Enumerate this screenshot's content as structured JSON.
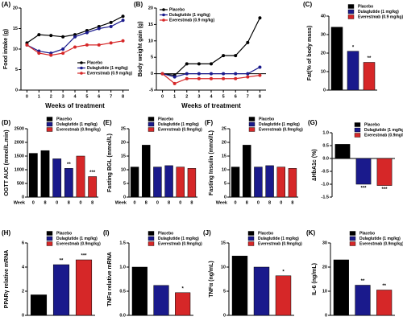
{
  "chart_data": [
    {
      "type": "line",
      "label": "(A)",
      "ylabel": "Food intake (g)",
      "xlabel": "Weeks of treatment",
      "x": [
        0,
        1,
        2,
        3,
        4,
        5,
        6,
        7,
        8
      ],
      "xlim": [
        -0.5,
        8.5
      ],
      "xticks": [
        0,
        1,
        2,
        3,
        4,
        5,
        6,
        7,
        8
      ],
      "ylim": [
        0,
        20
      ],
      "yticks": [
        0,
        5,
        10,
        15,
        20
      ],
      "legend": "lower right",
      "series": [
        {
          "name": "Placebo",
          "color": "#000000",
          "values": [
            11.5,
            13.5,
            13.3,
            13,
            13.5,
            14.5,
            15.5,
            16.5,
            18
          ]
        },
        {
          "name": "Dulaglutide (1 mg/kg)",
          "color": "#1a1a8c",
          "values": [
            11,
            9.5,
            9,
            10,
            13,
            14,
            15,
            15.5,
            17
          ]
        },
        {
          "name": "Everestmab (0.9 mg/kg)",
          "color": "#d62728",
          "values": [
            11,
            9,
            8.5,
            9,
            10.5,
            11,
            11,
            11.5,
            12
          ]
        }
      ]
    },
    {
      "type": "line",
      "label": "(B)",
      "ylabel": "Body weight gain (g)",
      "xlabel": "Weeks of treatment",
      "x": [
        0,
        1,
        2,
        3,
        4,
        5,
        6,
        7,
        8
      ],
      "xlim": [
        -0.5,
        8.5
      ],
      "xticks": [
        0,
        1,
        2,
        3,
        4,
        5,
        6,
        7,
        8
      ],
      "ylim": [
        -5,
        20
      ],
      "yticks": [
        -5,
        0,
        5,
        10,
        15,
        20
      ],
      "legend": "upper left",
      "series": [
        {
          "name": "Placebo",
          "color": "#000000",
          "values": [
            0,
            -0.5,
            3,
            3,
            3,
            5.5,
            5.5,
            9.5,
            17
          ]
        },
        {
          "name": "Dulaglutide (1 mg/kg)",
          "color": "#1a1a8c",
          "values": [
            0,
            -1,
            0,
            0,
            0,
            0,
            0,
            0,
            2
          ]
        },
        {
          "name": "Everestmab (0.9 mg/kg)",
          "color": "#d62728",
          "values": [
            0,
            -3,
            -1.5,
            -1.5,
            -1.5,
            -1.5,
            -1.5,
            -1,
            -0.5
          ]
        }
      ]
    },
    {
      "type": "bar",
      "label": "(C)",
      "ylabel": "Fat(% of body mass)",
      "ylim": [
        0,
        40
      ],
      "yticks": [
        0,
        10,
        20,
        30,
        40
      ],
      "legend": "top",
      "series": [
        {
          "name": "Placebo",
          "color": "#000000",
          "values": [
            34
          ]
        },
        {
          "name": "Dulaglutide (1 mg/kg)",
          "color": "#1a1a8c",
          "values": [
            21
          ],
          "significance": [
            "*"
          ]
        },
        {
          "name": "Everestmab (0.9 mg/kg)",
          "color": "#d62728",
          "values": [
            15
          ],
          "significance": [
            "**"
          ]
        }
      ]
    },
    {
      "type": "bar",
      "label": "(D)",
      "ylabel": "OGTT AUC (mmol/L.min)",
      "xlabel": "Week",
      "categories": [
        "0",
        "8"
      ],
      "ylim": [
        0,
        2500
      ],
      "yticks": [
        0,
        500,
        1000,
        1500,
        2000,
        2500
      ],
      "legend": "top",
      "series": [
        {
          "name": "Placebo",
          "color": "#000000",
          "values": [
            1600,
            1700
          ]
        },
        {
          "name": "Dulaglutide (1 mg/kg)",
          "color": "#1a1a8c",
          "values": [
            1400,
            1050
          ],
          "significance": [
            null,
            "**"
          ]
        },
        {
          "name": "Everestmab (0.9mg/kg)",
          "color": "#d62728",
          "values": [
            1500,
            750
          ],
          "significance": [
            null,
            "***"
          ]
        }
      ]
    },
    {
      "type": "bar",
      "label": "(E)",
      "ylabel": "Fasting BGL (mmol/L)",
      "xlabel": "Week",
      "categories": [
        "0",
        "8"
      ],
      "ylim": [
        0,
        25
      ],
      "yticks": [
        0,
        5,
        10,
        15,
        20,
        25
      ],
      "legend": "top",
      "series": [
        {
          "name": "Placebo",
          "color": "#000000",
          "values": [
            11,
            19
          ]
        },
        {
          "name": "Dulaglutide (1 mg/kg)",
          "color": "#1a1a8c",
          "values": [
            11,
            11.5
          ]
        },
        {
          "name": "Everestmab (0.9mg/kg)",
          "color": "#d62728",
          "values": [
            11,
            10.5
          ]
        }
      ]
    },
    {
      "type": "bar",
      "label": "(F)",
      "ylabel": "Fasting Insulin (mmol/L)",
      "xlabel": "Week",
      "categories": [
        "0",
        "8"
      ],
      "ylim": [
        0,
        25
      ],
      "yticks": [
        0,
        5,
        10,
        15,
        20,
        25
      ],
      "legend": "top",
      "series": [
        {
          "name": "Placebo",
          "color": "#000000",
          "values": [
            11,
            19
          ]
        },
        {
          "name": "Dulaglutide (1 mg/kg)",
          "color": "#1a1a8c",
          "values": [
            11,
            11.5
          ]
        },
        {
          "name": "Everestmab (0.9mg/kg)",
          "color": "#d62728",
          "values": [
            11,
            10.5
          ]
        }
      ]
    },
    {
      "type": "bar",
      "label": "(G)",
      "ylabel": "∆HbA1c  (%)",
      "ylim": [
        -1.5,
        1
      ],
      "yticks": [
        -1.5,
        {
          "value": -1,
          "label": "-1.0"
        },
        -0.5,
        {
          "value": 0,
          "label": "0.0"
        },
        0.5,
        {
          "value": 1,
          "label": "1.0"
        }
      ],
      "legend": "upper right",
      "series": [
        {
          "name": "Placebo",
          "color": "#000000",
          "values": [
            0.55
          ]
        },
        {
          "name": "Dulaglutide (1 mg/kg)",
          "color": "#1a1a8c",
          "values": [
            -1.0
          ],
          "significance": [
            "***"
          ]
        },
        {
          "name": "Everestmab (0.9mg/kg)",
          "color": "#d62728",
          "values": [
            -1.05
          ],
          "significance": [
            "***"
          ]
        }
      ]
    },
    {
      "type": "bar",
      "label": "(H)",
      "ylabel": "PPARγ relative mRNA",
      "ylim": [
        0,
        6
      ],
      "yticks": [
        0,
        2,
        4,
        6
      ],
      "legend": "top",
      "series": [
        {
          "name": "Placebo",
          "color": "#000000",
          "values": [
            1.7
          ]
        },
        {
          "name": "Dulaglutide (1 mg/kg)",
          "color": "#1a1a8c",
          "values": [
            4.2
          ],
          "significance": [
            "**"
          ]
        },
        {
          "name": "Everestmab (0.9mg/kg)",
          "color": "#d62728",
          "values": [
            4.6
          ],
          "significance": [
            "***"
          ]
        }
      ]
    },
    {
      "type": "bar",
      "label": "(I)",
      "ylabel": "TNFα relative mRNA",
      "ylim": [
        0,
        1.5
      ],
      "yticks": [
        {
          "value": 0,
          "label": "0.0"
        },
        0.5,
        {
          "value": 1,
          "label": "1.0"
        },
        1.5
      ],
      "legend": "top",
      "series": [
        {
          "name": "Placebo",
          "color": "#000000",
          "values": [
            1.0
          ]
        },
        {
          "name": "Dulaglutide (1 mg/kg)",
          "color": "#1a1a8c",
          "values": [
            0.62
          ]
        },
        {
          "name": "Everestmab (0.9mg/kg)",
          "color": "#d62728",
          "values": [
            0.47
          ],
          "significance": [
            "*"
          ]
        }
      ]
    },
    {
      "type": "bar",
      "label": "(J)",
      "ylabel": "TNFα (ng/mL)",
      "ylim": [
        0,
        15
      ],
      "yticks": [
        0,
        5,
        10,
        15
      ],
      "legend": "top",
      "series": [
        {
          "name": "Placebo",
          "color": "#000000",
          "values": [
            12.3
          ]
        },
        {
          "name": "Dulaglutide (1 mg/kg)",
          "color": "#1a1a8c",
          "values": [
            10
          ]
        },
        {
          "name": "Everestmab (0.9mg/kg)",
          "color": "#d62728",
          "values": [
            8.2
          ],
          "significance": [
            "*"
          ]
        }
      ]
    },
    {
      "type": "bar",
      "label": "(K)",
      "ylabel": "IL-6 (ng/mL)",
      "ylim": [
        0,
        30
      ],
      "yticks": [
        0,
        10,
        20,
        30
      ],
      "legend": "top",
      "series": [
        {
          "name": "Placebo",
          "color": "#000000",
          "values": [
            23
          ]
        },
        {
          "name": "Dulaglutide (1 mg/kg)",
          "color": "#1a1a8c",
          "values": [
            12.5
          ],
          "significance": [
            "**"
          ]
        },
        {
          "name": "Everestmab (0.9mg/kg)",
          "color": "#d62728",
          "values": [
            10.5
          ],
          "significance": [
            "**"
          ]
        }
      ]
    }
  ]
}
